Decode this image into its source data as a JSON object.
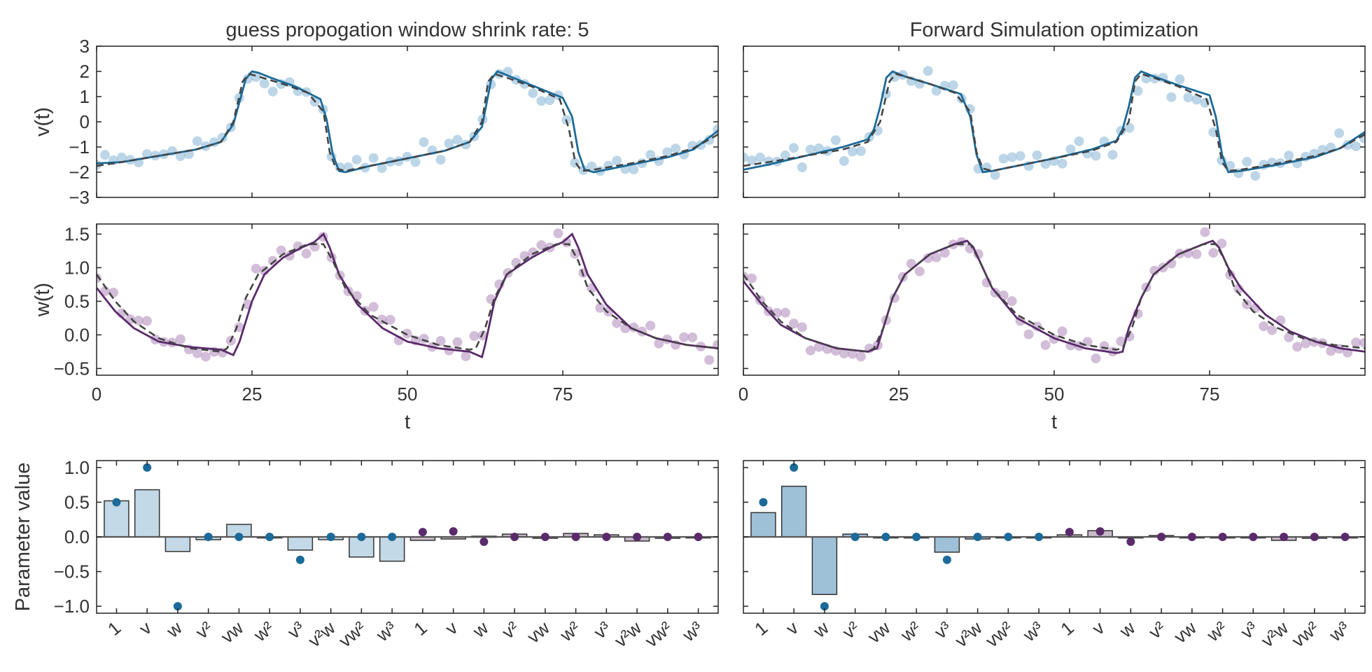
{
  "colors": {
    "v_line": "#1b6a99",
    "v_points": "#8fbbd8",
    "w_line": "#5a2a6b",
    "w_points": "#b592bf",
    "true_dash": "#444444",
    "bar_v_light": "#c3d9e7",
    "bar_v_strong": "#9fc1d8",
    "bar_w": "#c8bac8",
    "dot_v": "#1b6a99",
    "dot_w": "#5a2a6b"
  },
  "chart_data": [
    {
      "type": "line",
      "title": "guess propogation window shrink rate: 5",
      "xlabel": "",
      "ylabel": "v(t)",
      "xlim": [
        0,
        100
      ],
      "ylim": [
        -3,
        3
      ],
      "yticks": [
        "3",
        "2",
        "1",
        "0",
        "−1",
        "−2",
        "−3"
      ],
      "yticks_values": [
        3,
        2,
        1,
        0,
        -1,
        -2,
        -3
      ],
      "period": 39.5,
      "scatter_noise": 0.35,
      "series": [
        {
          "role": "fit",
          "style": "solid",
          "x": [
            0,
            4,
            10,
            16,
            20,
            22,
            24,
            25,
            26,
            28,
            32,
            36,
            37,
            38,
            39,
            40,
            44,
            50,
            56,
            60,
            62,
            63.5,
            64.5,
            66,
            70,
            75,
            76.5,
            77.5,
            78.5,
            80,
            86,
            92,
            96,
            100
          ],
          "values": [
            -1.65,
            -1.6,
            -1.35,
            -1.1,
            -0.8,
            -0.1,
            1.7,
            2.0,
            1.95,
            1.75,
            1.4,
            0.9,
            0.1,
            -1.3,
            -1.95,
            -2.0,
            -1.75,
            -1.45,
            -1.15,
            -0.8,
            -0.2,
            1.7,
            2.0,
            1.85,
            1.45,
            0.95,
            0.2,
            -1.2,
            -1.9,
            -2.0,
            -1.7,
            -1.4,
            -1.1,
            -0.35
          ]
        },
        {
          "role": "true",
          "style": "dashed",
          "x": [
            0,
            4,
            10,
            16,
            20,
            22,
            23.5,
            24.5,
            26,
            30,
            34,
            36.5,
            37.5,
            38.5,
            40,
            44,
            50,
            56,
            60,
            62,
            63,
            64,
            66,
            70,
            74.5,
            76,
            77,
            78,
            80,
            86,
            92,
            96,
            100
          ],
          "values": [
            -1.75,
            -1.6,
            -1.35,
            -1.1,
            -0.8,
            0.0,
            1.6,
            1.9,
            1.8,
            1.5,
            1.15,
            0.4,
            -1.2,
            -1.85,
            -1.95,
            -1.75,
            -1.45,
            -1.15,
            -0.8,
            0.0,
            1.6,
            1.9,
            1.75,
            1.4,
            0.9,
            -0.3,
            -1.6,
            -1.95,
            -1.9,
            -1.65,
            -1.35,
            -1.05,
            -0.5
          ]
        }
      ]
    },
    {
      "type": "line",
      "title": "Forward Simulation optimization",
      "xlabel": "",
      "ylabel": "",
      "xlim": [
        0,
        100
      ],
      "ylim": [
        -3,
        3
      ],
      "yticks": [],
      "yticks_values": [
        3,
        2,
        1,
        0,
        -1,
        -2,
        -3
      ],
      "period": 39.5,
      "scatter_noise": 0.35,
      "series": [
        {
          "role": "fit",
          "style": "solid",
          "x": [
            0,
            4,
            10,
            16,
            20,
            21,
            22,
            23,
            24,
            26,
            30,
            35,
            36.5,
            37.5,
            38.5,
            40,
            44,
            50,
            56,
            60,
            61,
            62,
            63,
            64,
            66,
            70,
            75,
            76,
            77,
            78,
            80,
            86,
            92,
            96,
            100
          ],
          "values": [
            -1.9,
            -1.7,
            -1.35,
            -1.0,
            -0.7,
            -0.3,
            0.6,
            1.75,
            2.0,
            1.8,
            1.5,
            1.1,
            0.2,
            -1.3,
            -2.0,
            -1.95,
            -1.75,
            -1.45,
            -1.1,
            -0.75,
            -0.3,
            0.6,
            1.75,
            2.0,
            1.8,
            1.45,
            1.05,
            0.2,
            -1.3,
            -2.0,
            -1.95,
            -1.7,
            -1.4,
            -1.05,
            -0.4
          ]
        },
        {
          "role": "true",
          "style": "dashed",
          "x": [
            0,
            4,
            10,
            16,
            20,
            22,
            23.5,
            24.5,
            26,
            30,
            34,
            36.5,
            37.5,
            38.5,
            40,
            44,
            50,
            56,
            60,
            62,
            63,
            64,
            66,
            70,
            74.5,
            76,
            77,
            78,
            80,
            86,
            92,
            96,
            100
          ],
          "values": [
            -1.75,
            -1.6,
            -1.35,
            -1.1,
            -0.8,
            0.0,
            1.6,
            1.9,
            1.8,
            1.5,
            1.15,
            0.4,
            -1.2,
            -1.85,
            -1.95,
            -1.75,
            -1.45,
            -1.15,
            -0.8,
            0.0,
            1.6,
            1.9,
            1.75,
            1.4,
            0.9,
            -0.3,
            -1.6,
            -1.95,
            -1.9,
            -1.65,
            -1.35,
            -1.05,
            -0.5
          ]
        }
      ]
    },
    {
      "type": "line",
      "title": "",
      "xlabel": "t",
      "ylabel": "w(t)",
      "xlim": [
        0,
        100
      ],
      "ylim": [
        -0.6,
        1.65
      ],
      "xticks": [
        "0",
        "25",
        "50",
        "75"
      ],
      "xticks_values": [
        0,
        25,
        50,
        75
      ],
      "yticks": [
        "1.5",
        "1.0",
        "0.5",
        "0.0",
        "−0.5"
      ],
      "yticks_values": [
        1.5,
        1.0,
        0.5,
        0.0,
        -0.5
      ],
      "period": 39.5,
      "scatter_noise": 0.12,
      "series": [
        {
          "role": "fit",
          "style": "solid",
          "x": [
            0,
            3,
            6,
            10,
            15,
            20,
            22,
            23,
            25,
            27,
            30,
            33,
            35,
            36.5,
            37.5,
            39,
            42,
            46,
            50,
            55,
            60,
            62,
            62.5,
            64,
            66,
            70,
            73,
            75,
            76.5,
            77.5,
            79,
            82,
            86,
            90,
            95,
            100
          ],
          "values": [
            0.7,
            0.35,
            0.1,
            -0.1,
            -0.18,
            -0.22,
            -0.3,
            -0.1,
            0.5,
            0.9,
            1.15,
            1.3,
            1.38,
            1.5,
            1.3,
            0.9,
            0.45,
            0.1,
            -0.1,
            -0.2,
            -0.25,
            -0.33,
            -0.15,
            0.5,
            0.9,
            1.15,
            1.3,
            1.38,
            1.5,
            1.3,
            0.9,
            0.45,
            0.1,
            -0.05,
            -0.15,
            -0.2
          ]
        },
        {
          "role": "true",
          "style": "dashed",
          "x": [
            0,
            3,
            6,
            10,
            15,
            20,
            21,
            22.5,
            24,
            26,
            30,
            34,
            36.5,
            38,
            40,
            44,
            50,
            55,
            60,
            61,
            62.5,
            64,
            66,
            70,
            74,
            76,
            77.5,
            79,
            82,
            86,
            90,
            95,
            100
          ],
          "values": [
            0.9,
            0.5,
            0.2,
            -0.05,
            -0.2,
            -0.25,
            -0.2,
            0.1,
            0.55,
            0.9,
            1.2,
            1.35,
            1.35,
            1.1,
            0.7,
            0.3,
            0.0,
            -0.15,
            -0.22,
            -0.2,
            0.1,
            0.55,
            0.9,
            1.2,
            1.35,
            1.35,
            1.1,
            0.7,
            0.35,
            0.1,
            -0.05,
            -0.15,
            -0.2
          ]
        }
      ]
    },
    {
      "type": "line",
      "title": "",
      "xlabel": "t",
      "ylabel": "",
      "xlim": [
        0,
        100
      ],
      "ylim": [
        -0.6,
        1.65
      ],
      "xticks": [
        "0",
        "25",
        "50",
        "75"
      ],
      "xticks_values": [
        0,
        25,
        50,
        75
      ],
      "yticks": [],
      "yticks_values": [
        1.5,
        1.0,
        0.5,
        0.0,
        -0.5
      ],
      "period": 39.5,
      "scatter_noise": 0.12,
      "series": [
        {
          "role": "fit",
          "style": "solid",
          "x": [
            0,
            3,
            6,
            10,
            15,
            20,
            21.5,
            22.5,
            24,
            26,
            30,
            34,
            36,
            37,
            38.5,
            40,
            44,
            50,
            55,
            60,
            61,
            62,
            64,
            66,
            70,
            74,
            75.5,
            76.5,
            78,
            80,
            84,
            88,
            92,
            96,
            100
          ],
          "values": [
            0.8,
            0.45,
            0.15,
            -0.05,
            -0.2,
            -0.25,
            -0.2,
            0.1,
            0.55,
            0.9,
            1.2,
            1.35,
            1.4,
            1.3,
            1.0,
            0.7,
            0.25,
            -0.05,
            -0.2,
            -0.27,
            -0.25,
            0.1,
            0.55,
            0.9,
            1.2,
            1.35,
            1.4,
            1.3,
            1.0,
            0.7,
            0.3,
            0.05,
            -0.1,
            -0.2,
            -0.25
          ]
        },
        {
          "role": "true",
          "style": "dashed",
          "x": [
            0,
            3,
            6,
            10,
            15,
            20,
            21,
            22.5,
            24,
            26,
            30,
            34,
            36.5,
            38,
            40,
            44,
            50,
            55,
            60,
            61,
            62.5,
            64,
            66,
            70,
            74,
            76,
            77.5,
            79,
            82,
            86,
            90,
            95,
            100
          ],
          "values": [
            0.9,
            0.5,
            0.2,
            -0.05,
            -0.2,
            -0.25,
            -0.2,
            0.1,
            0.55,
            0.9,
            1.2,
            1.35,
            1.35,
            1.1,
            0.7,
            0.3,
            0.0,
            -0.15,
            -0.22,
            -0.2,
            0.1,
            0.55,
            0.9,
            1.2,
            1.35,
            1.35,
            1.1,
            0.7,
            0.35,
            0.1,
            -0.05,
            -0.15,
            -0.2
          ]
        }
      ]
    },
    {
      "type": "bar",
      "title": "",
      "xlabel": "",
      "ylabel": "Parameter value",
      "ylim": [
        -1.1,
        1.1
      ],
      "yticks": [
        "1.0",
        "0.5",
        "0.0",
        "−0.5",
        "−1.0"
      ],
      "yticks_values": [
        1.0,
        0.5,
        0.0,
        -0.5,
        -1.0
      ],
      "categories": [
        "1",
        "v",
        "w",
        "v²",
        "vw",
        "w²",
        "v³",
        "v²w",
        "vw²",
        "w³",
        "1",
        "v",
        "w",
        "v²",
        "vw",
        "w²",
        "v³",
        "v²w",
        "vw²",
        "w³"
      ],
      "series": [
        {
          "name": "",
          "role": "estimated",
          "values": [
            0.52,
            0.68,
            -0.21,
            -0.04,
            0.18,
            0.0,
            -0.19,
            -0.04,
            -0.29,
            -0.35,
            -0.05,
            -0.03,
            0.01,
            0.04,
            -0.02,
            0.05,
            0.03,
            -0.06,
            -0.02,
            0.0
          ]
        },
        {
          "name": "",
          "role": "true",
          "values": [
            0.5,
            1.0,
            -1.0,
            0.0,
            0.0,
            0.0,
            -0.33,
            0.0,
            0.0,
            0.0,
            0.07,
            0.08,
            -0.07,
            0.0,
            0.0,
            0.0,
            0.0,
            0.0,
            0.0,
            0.0
          ]
        }
      ]
    },
    {
      "type": "bar",
      "title": "",
      "xlabel": "",
      "ylabel": "",
      "ylim": [
        -1.1,
        1.1
      ],
      "yticks": [],
      "yticks_values": [
        1.0,
        0.5,
        0.0,
        -0.5,
        -1.0
      ],
      "categories": [
        "1",
        "v",
        "w",
        "v²",
        "vw",
        "w²",
        "v³",
        "v²w",
        "vw²",
        "w³",
        "1",
        "v",
        "w",
        "v²",
        "vw",
        "w²",
        "v³",
        "v²w",
        "vw²",
        "w³"
      ],
      "series": [
        {
          "name": "",
          "role": "estimated",
          "values": [
            0.35,
            0.73,
            -0.83,
            0.04,
            -0.01,
            0.0,
            -0.22,
            -0.03,
            0.0,
            0.0,
            0.03,
            0.09,
            0.0,
            0.02,
            0.0,
            0.0,
            0.0,
            -0.05,
            -0.02,
            0.0
          ]
        },
        {
          "name": "",
          "role": "true",
          "values": [
            0.5,
            1.0,
            -1.0,
            0.0,
            0.0,
            0.0,
            -0.33,
            0.0,
            0.0,
            0.0,
            0.07,
            0.08,
            -0.07,
            0.0,
            0.0,
            0.0,
            0.0,
            0.0,
            0.0,
            0.0
          ]
        }
      ]
    }
  ]
}
